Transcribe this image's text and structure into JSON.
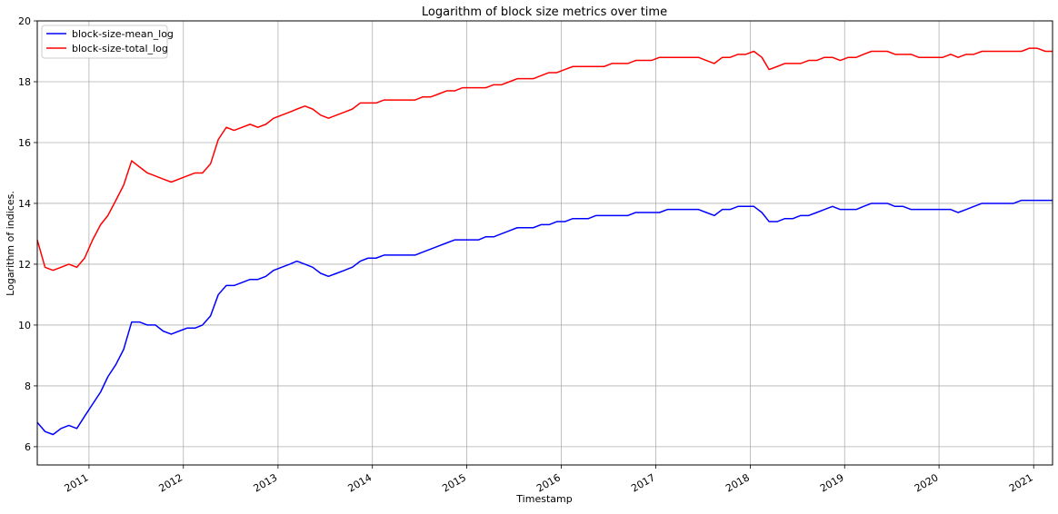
{
  "chart_data": {
    "type": "line",
    "title": "Logarithm of block size metrics over time",
    "xlabel": "Timestamp",
    "ylabel": "Logarithm of indices.",
    "xlim": [
      "2010-06-15",
      "2021-03-15"
    ],
    "ylim": [
      5.4,
      20
    ],
    "x_ticks": [
      "2011",
      "2012",
      "2013",
      "2014",
      "2015",
      "2016",
      "2017",
      "2018",
      "2019",
      "2020",
      "2021"
    ],
    "y_ticks": [
      6,
      8,
      10,
      12,
      14,
      16,
      18,
      20
    ],
    "grid": true,
    "legend_position": "top-left",
    "series": [
      {
        "name": "block-size-mean_log",
        "color": "#0000ff",
        "points": [
          [
            "2010-06-15",
            6.8
          ],
          [
            "2010-07-15",
            6.5
          ],
          [
            "2010-08-15",
            6.4
          ],
          [
            "2010-09-15",
            6.6
          ],
          [
            "2010-10-15",
            6.7
          ],
          [
            "2010-11-15",
            6.6
          ],
          [
            "2010-12-15",
            7.0
          ],
          [
            "2011-01-15",
            7.4
          ],
          [
            "2011-02-15",
            7.8
          ],
          [
            "2011-03-15",
            8.3
          ],
          [
            "2011-04-15",
            8.7
          ],
          [
            "2011-05-15",
            9.2
          ],
          [
            "2011-06-15",
            10.1
          ],
          [
            "2011-07-15",
            10.1
          ],
          [
            "2011-08-15",
            10.0
          ],
          [
            "2011-09-15",
            10.0
          ],
          [
            "2011-10-15",
            9.8
          ],
          [
            "2011-11-15",
            9.7
          ],
          [
            "2011-12-15",
            9.8
          ],
          [
            "2012-01-15",
            9.9
          ],
          [
            "2012-02-15",
            9.9
          ],
          [
            "2012-03-15",
            10.0
          ],
          [
            "2012-04-15",
            10.3
          ],
          [
            "2012-05-15",
            11.0
          ],
          [
            "2012-06-15",
            11.3
          ],
          [
            "2012-07-15",
            11.3
          ],
          [
            "2012-08-15",
            11.4
          ],
          [
            "2012-09-15",
            11.5
          ],
          [
            "2012-10-15",
            11.5
          ],
          [
            "2012-11-15",
            11.6
          ],
          [
            "2012-12-15",
            11.8
          ],
          [
            "2013-01-15",
            11.9
          ],
          [
            "2013-02-15",
            12.0
          ],
          [
            "2013-03-15",
            12.1
          ],
          [
            "2013-04-15",
            12.0
          ],
          [
            "2013-05-15",
            11.9
          ],
          [
            "2013-06-15",
            11.7
          ],
          [
            "2013-07-15",
            11.6
          ],
          [
            "2013-08-15",
            11.7
          ],
          [
            "2013-09-15",
            11.8
          ],
          [
            "2013-10-15",
            11.9
          ],
          [
            "2013-11-15",
            12.1
          ],
          [
            "2013-12-15",
            12.2
          ],
          [
            "2014-01-15",
            12.2
          ],
          [
            "2014-02-15",
            12.3
          ],
          [
            "2014-03-15",
            12.3
          ],
          [
            "2014-04-15",
            12.3
          ],
          [
            "2014-05-15",
            12.3
          ],
          [
            "2014-06-15",
            12.3
          ],
          [
            "2014-07-15",
            12.4
          ],
          [
            "2014-08-15",
            12.5
          ],
          [
            "2014-09-15",
            12.6
          ],
          [
            "2014-10-15",
            12.7
          ],
          [
            "2014-11-15",
            12.8
          ],
          [
            "2014-12-15",
            12.8
          ],
          [
            "2015-01-15",
            12.8
          ],
          [
            "2015-02-15",
            12.8
          ],
          [
            "2015-03-15",
            12.9
          ],
          [
            "2015-04-15",
            12.9
          ],
          [
            "2015-05-15",
            13.0
          ],
          [
            "2015-06-15",
            13.1
          ],
          [
            "2015-07-15",
            13.2
          ],
          [
            "2015-08-15",
            13.2
          ],
          [
            "2015-09-15",
            13.2
          ],
          [
            "2015-10-15",
            13.3
          ],
          [
            "2015-11-15",
            13.3
          ],
          [
            "2015-12-15",
            13.4
          ],
          [
            "2016-01-15",
            13.4
          ],
          [
            "2016-02-15",
            13.5
          ],
          [
            "2016-03-15",
            13.5
          ],
          [
            "2016-04-15",
            13.5
          ],
          [
            "2016-05-15",
            13.6
          ],
          [
            "2016-06-15",
            13.6
          ],
          [
            "2016-07-15",
            13.6
          ],
          [
            "2016-08-15",
            13.6
          ],
          [
            "2016-09-15",
            13.6
          ],
          [
            "2016-10-15",
            13.7
          ],
          [
            "2016-11-15",
            13.7
          ],
          [
            "2016-12-15",
            13.7
          ],
          [
            "2017-01-15",
            13.7
          ],
          [
            "2017-02-15",
            13.8
          ],
          [
            "2017-03-15",
            13.8
          ],
          [
            "2017-04-15",
            13.8
          ],
          [
            "2017-05-15",
            13.8
          ],
          [
            "2017-06-15",
            13.8
          ],
          [
            "2017-07-15",
            13.7
          ],
          [
            "2017-08-15",
            13.6
          ],
          [
            "2017-09-15",
            13.8
          ],
          [
            "2017-10-15",
            13.8
          ],
          [
            "2017-11-15",
            13.9
          ],
          [
            "2017-12-15",
            13.9
          ],
          [
            "2018-01-15",
            13.9
          ],
          [
            "2018-02-15",
            13.7
          ],
          [
            "2018-03-15",
            13.4
          ],
          [
            "2018-04-15",
            13.4
          ],
          [
            "2018-05-15",
            13.5
          ],
          [
            "2018-06-15",
            13.5
          ],
          [
            "2018-07-15",
            13.6
          ],
          [
            "2018-08-15",
            13.6
          ],
          [
            "2018-09-15",
            13.7
          ],
          [
            "2018-10-15",
            13.8
          ],
          [
            "2018-11-15",
            13.9
          ],
          [
            "2018-12-15",
            13.8
          ],
          [
            "2019-01-15",
            13.8
          ],
          [
            "2019-02-15",
            13.8
          ],
          [
            "2019-03-15",
            13.9
          ],
          [
            "2019-04-15",
            14.0
          ],
          [
            "2019-05-15",
            14.0
          ],
          [
            "2019-06-15",
            14.0
          ],
          [
            "2019-07-15",
            13.9
          ],
          [
            "2019-08-15",
            13.9
          ],
          [
            "2019-09-15",
            13.8
          ],
          [
            "2019-10-15",
            13.8
          ],
          [
            "2019-11-15",
            13.8
          ],
          [
            "2019-12-15",
            13.8
          ],
          [
            "2020-01-15",
            13.8
          ],
          [
            "2020-02-15",
            13.8
          ],
          [
            "2020-03-15",
            13.7
          ],
          [
            "2020-04-15",
            13.8
          ],
          [
            "2020-05-15",
            13.9
          ],
          [
            "2020-06-15",
            14.0
          ],
          [
            "2020-07-15",
            14.0
          ],
          [
            "2020-08-15",
            14.0
          ],
          [
            "2020-09-15",
            14.0
          ],
          [
            "2020-10-15",
            14.0
          ],
          [
            "2020-11-15",
            14.1
          ],
          [
            "2020-12-15",
            14.1
          ],
          [
            "2021-01-15",
            14.1
          ],
          [
            "2021-02-15",
            14.1
          ],
          [
            "2021-03-15",
            14.1
          ]
        ]
      },
      {
        "name": "block-size-total_log",
        "color": "#ff0000",
        "points": [
          [
            "2010-06-15",
            12.8
          ],
          [
            "2010-07-15",
            11.9
          ],
          [
            "2010-08-15",
            11.8
          ],
          [
            "2010-09-15",
            11.9
          ],
          [
            "2010-10-15",
            12.0
          ],
          [
            "2010-11-15",
            11.9
          ],
          [
            "2010-12-15",
            12.2
          ],
          [
            "2011-01-15",
            12.8
          ],
          [
            "2011-02-15",
            13.3
          ],
          [
            "2011-03-15",
            13.6
          ],
          [
            "2011-04-15",
            14.1
          ],
          [
            "2011-05-15",
            14.6
          ],
          [
            "2011-06-15",
            15.4
          ],
          [
            "2011-07-15",
            15.2
          ],
          [
            "2011-08-15",
            15.0
          ],
          [
            "2011-09-15",
            14.9
          ],
          [
            "2011-10-15",
            14.8
          ],
          [
            "2011-11-15",
            14.7
          ],
          [
            "2011-12-15",
            14.8
          ],
          [
            "2012-01-15",
            14.9
          ],
          [
            "2012-02-15",
            15.0
          ],
          [
            "2012-03-15",
            15.0
          ],
          [
            "2012-04-15",
            15.3
          ],
          [
            "2012-05-15",
            16.1
          ],
          [
            "2012-06-15",
            16.5
          ],
          [
            "2012-07-15",
            16.4
          ],
          [
            "2012-08-15",
            16.5
          ],
          [
            "2012-09-15",
            16.6
          ],
          [
            "2012-10-15",
            16.5
          ],
          [
            "2012-11-15",
            16.6
          ],
          [
            "2012-12-15",
            16.8
          ],
          [
            "2013-01-15",
            16.9
          ],
          [
            "2013-02-15",
            17.0
          ],
          [
            "2013-03-15",
            17.1
          ],
          [
            "2013-04-15",
            17.2
          ],
          [
            "2013-05-15",
            17.1
          ],
          [
            "2013-06-15",
            16.9
          ],
          [
            "2013-07-15",
            16.8
          ],
          [
            "2013-08-15",
            16.9
          ],
          [
            "2013-09-15",
            17.0
          ],
          [
            "2013-10-15",
            17.1
          ],
          [
            "2013-11-15",
            17.3
          ],
          [
            "2013-12-15",
            17.3
          ],
          [
            "2014-01-15",
            17.3
          ],
          [
            "2014-02-15",
            17.4
          ],
          [
            "2014-03-15",
            17.4
          ],
          [
            "2014-04-15",
            17.4
          ],
          [
            "2014-05-15",
            17.4
          ],
          [
            "2014-06-15",
            17.4
          ],
          [
            "2014-07-15",
            17.5
          ],
          [
            "2014-08-15",
            17.5
          ],
          [
            "2014-09-15",
            17.6
          ],
          [
            "2014-10-15",
            17.7
          ],
          [
            "2014-11-15",
            17.7
          ],
          [
            "2014-12-15",
            17.8
          ],
          [
            "2015-01-15",
            17.8
          ],
          [
            "2015-02-15",
            17.8
          ],
          [
            "2015-03-15",
            17.8
          ],
          [
            "2015-04-15",
            17.9
          ],
          [
            "2015-05-15",
            17.9
          ],
          [
            "2015-06-15",
            18.0
          ],
          [
            "2015-07-15",
            18.1
          ],
          [
            "2015-08-15",
            18.1
          ],
          [
            "2015-09-15",
            18.1
          ],
          [
            "2015-10-15",
            18.2
          ],
          [
            "2015-11-15",
            18.3
          ],
          [
            "2015-12-15",
            18.3
          ],
          [
            "2016-01-15",
            18.4
          ],
          [
            "2016-02-15",
            18.5
          ],
          [
            "2016-03-15",
            18.5
          ],
          [
            "2016-04-15",
            18.5
          ],
          [
            "2016-05-15",
            18.5
          ],
          [
            "2016-06-15",
            18.5
          ],
          [
            "2016-07-15",
            18.6
          ],
          [
            "2016-08-15",
            18.6
          ],
          [
            "2016-09-15",
            18.6
          ],
          [
            "2016-10-15",
            18.7
          ],
          [
            "2016-11-15",
            18.7
          ],
          [
            "2016-12-15",
            18.7
          ],
          [
            "2017-01-15",
            18.8
          ],
          [
            "2017-02-15",
            18.8
          ],
          [
            "2017-03-15",
            18.8
          ],
          [
            "2017-04-15",
            18.8
          ],
          [
            "2017-05-15",
            18.8
          ],
          [
            "2017-06-15",
            18.8
          ],
          [
            "2017-07-15",
            18.7
          ],
          [
            "2017-08-15",
            18.6
          ],
          [
            "2017-09-15",
            18.8
          ],
          [
            "2017-10-15",
            18.8
          ],
          [
            "2017-11-15",
            18.9
          ],
          [
            "2017-12-15",
            18.9
          ],
          [
            "2018-01-15",
            19.0
          ],
          [
            "2018-02-15",
            18.8
          ],
          [
            "2018-03-15",
            18.4
          ],
          [
            "2018-04-15",
            18.5
          ],
          [
            "2018-05-15",
            18.6
          ],
          [
            "2018-06-15",
            18.6
          ],
          [
            "2018-07-15",
            18.6
          ],
          [
            "2018-08-15",
            18.7
          ],
          [
            "2018-09-15",
            18.7
          ],
          [
            "2018-10-15",
            18.8
          ],
          [
            "2018-11-15",
            18.8
          ],
          [
            "2018-12-15",
            18.7
          ],
          [
            "2019-01-15",
            18.8
          ],
          [
            "2019-02-15",
            18.8
          ],
          [
            "2019-03-15",
            18.9
          ],
          [
            "2019-04-15",
            19.0
          ],
          [
            "2019-05-15",
            19.0
          ],
          [
            "2019-06-15",
            19.0
          ],
          [
            "2019-07-15",
            18.9
          ],
          [
            "2019-08-15",
            18.9
          ],
          [
            "2019-09-15",
            18.9
          ],
          [
            "2019-10-15",
            18.8
          ],
          [
            "2019-11-15",
            18.8
          ],
          [
            "2019-12-15",
            18.8
          ],
          [
            "2020-01-15",
            18.8
          ],
          [
            "2020-02-15",
            18.9
          ],
          [
            "2020-03-15",
            18.8
          ],
          [
            "2020-04-15",
            18.9
          ],
          [
            "2020-05-15",
            18.9
          ],
          [
            "2020-06-15",
            19.0
          ],
          [
            "2020-07-15",
            19.0
          ],
          [
            "2020-08-15",
            19.0
          ],
          [
            "2020-09-15",
            19.0
          ],
          [
            "2020-10-15",
            19.0
          ],
          [
            "2020-11-15",
            19.0
          ],
          [
            "2020-12-15",
            19.1
          ],
          [
            "2021-01-15",
            19.1
          ],
          [
            "2021-02-15",
            19.0
          ],
          [
            "2021-03-15",
            19.0
          ]
        ]
      }
    ]
  }
}
